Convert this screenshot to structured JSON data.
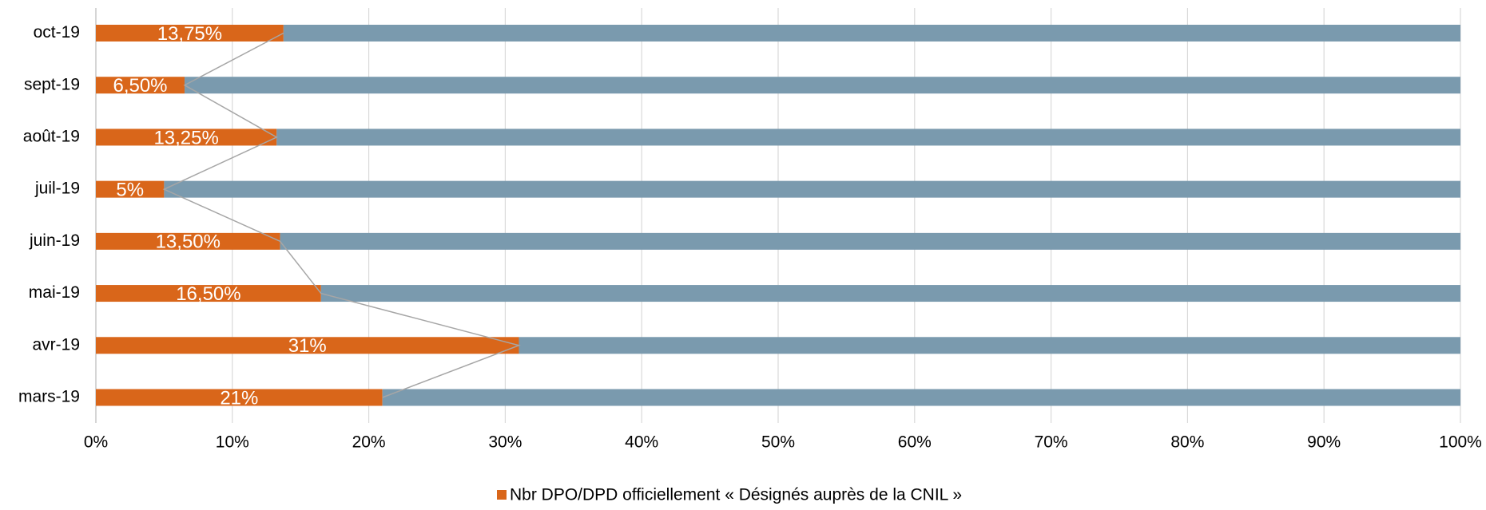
{
  "chart_data": {
    "type": "stacked_barh",
    "categories": [
      "mars-19",
      "avr-19",
      "mai-19",
      "juin-19",
      "juil-19",
      "août-19",
      "sept-19",
      "oct-19"
    ],
    "series": [
      {
        "name": "Nbr DPO/DPD officiellement « Désignés auprès de la  CNIL »",
        "color": "#d9661a",
        "values": [
          21,
          31,
          16.5,
          13.5,
          5,
          13.25,
          6.5,
          13.75
        ],
        "value_labels": [
          "21%",
          "31%",
          "16,50%",
          "13,50%",
          "5%",
          "13,25%",
          "6,50%",
          "13,75%"
        ]
      },
      {
        "color": "#7a9aae",
        "values": [
          79,
          69,
          83.5,
          86.5,
          95,
          86.75,
          93.5,
          86.25
        ]
      }
    ],
    "xlim": [
      0,
      100
    ],
    "xticks": [
      {
        "value": 0,
        "label": "0%"
      },
      {
        "value": 10,
        "label": "10%"
      },
      {
        "value": 20,
        "label": "20%"
      },
      {
        "value": 30,
        "label": "30%"
      },
      {
        "value": 40,
        "label": "40%"
      },
      {
        "value": 50,
        "label": "50%"
      },
      {
        "value": 60,
        "label": "60%"
      },
      {
        "value": 70,
        "label": "70%"
      },
      {
        "value": 80,
        "label": "80%"
      },
      {
        "value": 90,
        "label": "90%"
      },
      {
        "value": 100,
        "label": "100%"
      }
    ],
    "grid": true,
    "legend": "bottom"
  }
}
